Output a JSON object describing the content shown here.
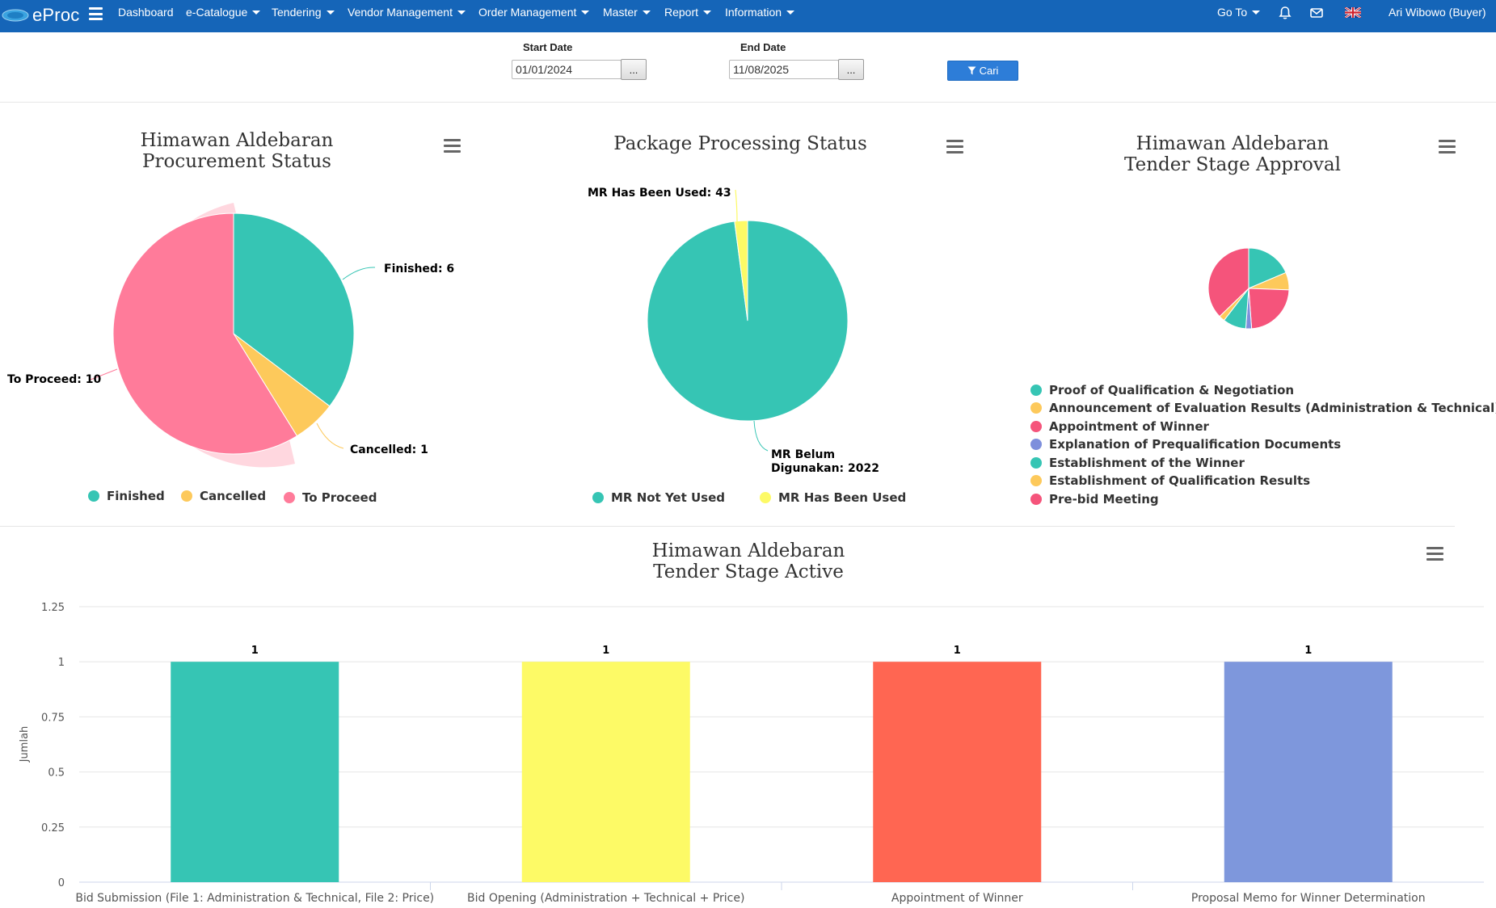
{
  "navbar": {
    "brand": "eProc",
    "menu": [
      {
        "label": "Dashboard",
        "dropdown": false
      },
      {
        "label": "e-Catalogue",
        "dropdown": true
      },
      {
        "label": "Tendering",
        "dropdown": true
      },
      {
        "label": "Vendor Management",
        "dropdown": true
      },
      {
        "label": "Order Management",
        "dropdown": true
      },
      {
        "label": "Master",
        "dropdown": true
      },
      {
        "label": "Report",
        "dropdown": true
      },
      {
        "label": "Information",
        "dropdown": true
      }
    ],
    "goto_label": "Go To",
    "user": "Ari Wibowo (Buyer)",
    "icons": [
      "bell-icon",
      "envelope-icon",
      "uk-flag-icon"
    ]
  },
  "filter": {
    "start_label": "Start Date",
    "start_value": "01/01/2024",
    "end_label": "End Date",
    "end_value": "11/08/2025",
    "picker_label": "...",
    "search_label": "Cari",
    "search_icon": "filter-icon"
  },
  "charts": {
    "procurement": {
      "title_lines": [
        "Himawan Aldebaran",
        "Procurement Status"
      ],
      "labels": [
        "Finished: 6",
        "Cancelled: 1",
        "To Proceed: 10"
      ]
    },
    "package": {
      "title_lines": [
        "Package Processing Status"
      ],
      "labels": [
        "MR Has Been Used: 43",
        "MR Belum",
        "Digunakan: 2022"
      ]
    },
    "approval": {
      "title_lines": [
        "Himawan Aldebaran",
        "Tender Stage Approval"
      ]
    },
    "active": {
      "title_lines": [
        "Himawan Aldebaran",
        "Tender Stage Active"
      ]
    }
  },
  "chart_data": [
    {
      "type": "pie",
      "title": "Himawan Aldebaran Procurement Status",
      "categories": [
        "Finished",
        "Cancelled",
        "To Proceed"
      ],
      "values": [
        6,
        1,
        10
      ],
      "colors": [
        "#36c5b4",
        "#fdc95b",
        "#ff7b9a"
      ],
      "legend": "bottom"
    },
    {
      "type": "pie",
      "title": "Package Processing Status",
      "categories": [
        "MR Not Yet Used",
        "MR Has Been Used"
      ],
      "values": [
        2022,
        43
      ],
      "colors": [
        "#36c5b4",
        "#fdfa66"
      ],
      "legend": "bottom"
    },
    {
      "type": "pie",
      "title": "Himawan Aldebaran Tender Stage Approval",
      "categories": [
        "Proof of Qualification & Negotiation",
        "Announcement of Evaluation Results (Administration & Technical)",
        "Appointment of Winner",
        "Explanation of Prequalification Documents",
        "Establishment of the Winner",
        "Establishment of Qualification Results",
        "Pre-bid Meeting"
      ],
      "values": [
        4,
        1.5,
        5,
        0.5,
        2,
        0.5,
        8
      ],
      "colors": [
        "#36c5b4",
        "#fdc95b",
        "#f5547b",
        "#7e8fdc",
        "#36c5b4",
        "#fdc95b",
        "#f5547b"
      ],
      "legend": "bottom"
    },
    {
      "type": "bar",
      "title": "Himawan Aldebaran Tender Stage Active",
      "categories": [
        "Bid Submission (File 1: Administration & Technical, File 2: Price)",
        "Bid Opening (Administration + Technical + Price)",
        "Appointment of Winner",
        "Proposal Memo for Winner Determination"
      ],
      "values": [
        1,
        1,
        1,
        1
      ],
      "colors": [
        "#36c5b4",
        "#fdfa66",
        "#ff6652",
        "#7e97dc"
      ],
      "ylabel": "Jumlah",
      "ylim": [
        0,
        1.25
      ],
      "yticks": [
        0,
        0.25,
        0.5,
        0.75,
        1,
        1.25
      ],
      "grid": true
    }
  ]
}
